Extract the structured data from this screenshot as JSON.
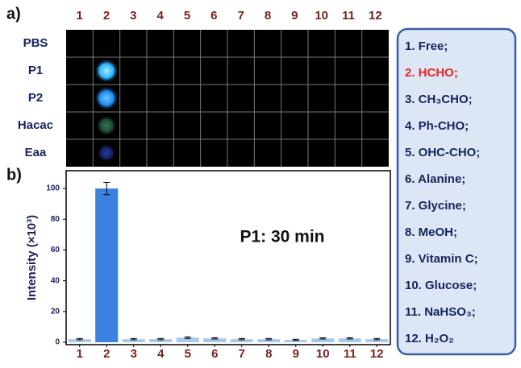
{
  "panel_a": {
    "label": "a)",
    "columns": [
      "1",
      "2",
      "3",
      "4",
      "5",
      "6",
      "7",
      "8",
      "9",
      "10",
      "11",
      "12"
    ],
    "rows": [
      "PBS",
      "P1",
      "P2",
      "Hacac",
      "Eaa"
    ]
  },
  "chart_data": {
    "type": "bar",
    "label": "b)",
    "annotation": "P1: 30 min",
    "y_label": "Intensity (×10³)",
    "categories": [
      "1",
      "2",
      "3",
      "4",
      "5",
      "6",
      "7",
      "8",
      "9",
      "10",
      "11",
      "12"
    ],
    "values": [
      2,
      100,
      2,
      2,
      3,
      2.5,
      2,
      2,
      1.5,
      2.5,
      2.5,
      2
    ],
    "errors": [
      0.4,
      4,
      0.4,
      0.4,
      0.5,
      0.4,
      0.4,
      0.4,
      0.4,
      0.4,
      0.4,
      0.4
    ],
    "colors": [
      "#a8c8ee",
      "#3b82e0",
      "#a8c8ee",
      "#a8c8ee",
      "#a8c8ee",
      "#a8c8ee",
      "#a8c8ee",
      "#a8c8ee",
      "#a8c8ee",
      "#a8c8ee",
      "#a8c8ee",
      "#a8c8ee"
    ],
    "ylim": [
      0,
      110
    ],
    "yticks": [
      0,
      20,
      40,
      60,
      80,
      100
    ]
  },
  "legend": {
    "items": [
      {
        "text": "1. Free;",
        "color": "#16235e"
      },
      {
        "text": "2. HCHO;",
        "color": "#e8251f"
      },
      {
        "text": "3. CH₃CHO;",
        "color": "#16235e"
      },
      {
        "text": "4. Ph-CHO;",
        "color": "#16235e"
      },
      {
        "text": "5. OHC-CHO;",
        "color": "#16235e"
      },
      {
        "text": "6. Alanine;",
        "color": "#16235e"
      },
      {
        "text": "7. Glycine;",
        "color": "#16235e"
      },
      {
        "text": "8. MeOH;",
        "color": "#16235e"
      },
      {
        "text": "9. Vitamin C;",
        "color": "#16235e"
      },
      {
        "text": "10. Glucose;",
        "color": "#16235e"
      },
      {
        "text": "11. NaHSO₃;",
        "color": "#16235e"
      },
      {
        "text": "12. H₂O₂",
        "color": "#16235e"
      }
    ]
  }
}
